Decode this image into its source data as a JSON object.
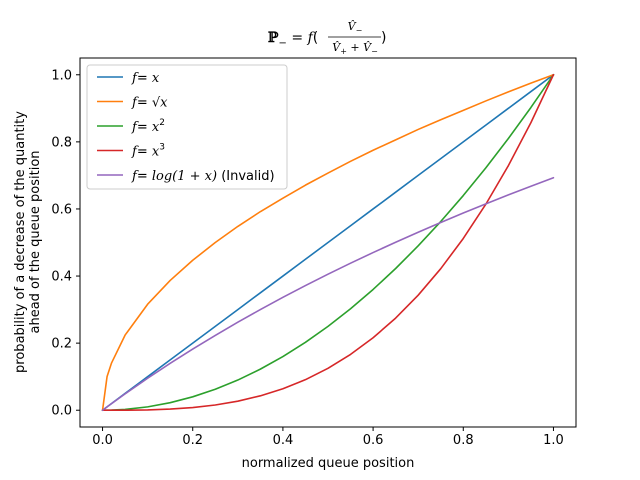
{
  "chart_data": {
    "type": "line",
    "title": "ℙ₋ = f(V̂₋ / (V̂₊ + V̂₋))",
    "xlabel": "normalized queue position",
    "ylabel_lines": [
      "probability of a decrease of the quantity",
      "ahead of the queue position"
    ],
    "xlim": [
      -0.05,
      1.05
    ],
    "ylim": [
      -0.05,
      1.05
    ],
    "xticks": [
      0.0,
      0.2,
      0.4,
      0.6,
      0.8,
      1.0
    ],
    "yticks": [
      0.0,
      0.2,
      0.4,
      0.6,
      0.8,
      1.0
    ],
    "xtick_labels": [
      "0.0",
      "0.2",
      "0.4",
      "0.6",
      "0.8",
      "1.0"
    ],
    "ytick_labels": [
      "0.0",
      "0.2",
      "0.4",
      "0.6",
      "0.8",
      "1.0"
    ],
    "grid": false,
    "legend_position": "top-left",
    "x": [
      0.0,
      0.01,
      0.02,
      0.05,
      0.1,
      0.15,
      0.2,
      0.25,
      0.3,
      0.35,
      0.4,
      0.45,
      0.5,
      0.55,
      0.6,
      0.65,
      0.7,
      0.75,
      0.8,
      0.85,
      0.9,
      0.95,
      1.0
    ],
    "series": [
      {
        "name": "f = x",
        "legend": {
          "pre": "f",
          "post": " x",
          "sup": "",
          "suffix": ""
        },
        "color": "#1f77b4",
        "values": [
          0.0,
          0.01,
          0.02,
          0.05,
          0.1,
          0.15,
          0.2,
          0.25,
          0.3,
          0.35,
          0.4,
          0.45,
          0.5,
          0.55,
          0.6,
          0.65,
          0.7,
          0.75,
          0.8,
          0.85,
          0.9,
          0.95,
          1.0
        ]
      },
      {
        "name": "f = √x",
        "legend": {
          "pre": "f",
          "post": " √x",
          "sup": "",
          "suffix": ""
        },
        "color": "#ff7f0e",
        "values": [
          0.0,
          0.1,
          0.141,
          0.224,
          0.316,
          0.387,
          0.447,
          0.5,
          0.548,
          0.592,
          0.632,
          0.671,
          0.707,
          0.742,
          0.775,
          0.806,
          0.837,
          0.866,
          0.894,
          0.922,
          0.949,
          0.975,
          1.0
        ]
      },
      {
        "name": "f = x²",
        "legend": {
          "pre": "f",
          "post": " x",
          "sup": "2",
          "suffix": ""
        },
        "color": "#2ca02c",
        "values": [
          0.0,
          0.0001,
          0.0004,
          0.0025,
          0.01,
          0.0225,
          0.04,
          0.0625,
          0.09,
          0.1225,
          0.16,
          0.2025,
          0.25,
          0.3025,
          0.36,
          0.4225,
          0.49,
          0.5625,
          0.64,
          0.7225,
          0.81,
          0.9025,
          1.0
        ]
      },
      {
        "name": "f = x³",
        "legend": {
          "pre": "f",
          "post": " x",
          "sup": "3",
          "suffix": ""
        },
        "color": "#d62728",
        "values": [
          0.0,
          1e-06,
          8e-06,
          0.000125,
          0.001,
          0.0034,
          0.008,
          0.0156,
          0.027,
          0.0429,
          0.064,
          0.0911,
          0.125,
          0.1664,
          0.216,
          0.2746,
          0.343,
          0.4219,
          0.512,
          0.6141,
          0.729,
          0.8574,
          1.0
        ]
      },
      {
        "name": "f = log(1 + x) (Invalid)",
        "legend": {
          "pre": "f",
          "post": " log(1 + x)",
          "sup": "",
          "suffix": " (Invalid)"
        },
        "color": "#9467bd",
        "values": [
          0.0,
          0.00995,
          0.0198,
          0.0488,
          0.0953,
          0.1398,
          0.1823,
          0.2231,
          0.2624,
          0.3001,
          0.3365,
          0.3716,
          0.4055,
          0.4383,
          0.47,
          0.5008,
          0.5306,
          0.5596,
          0.5878,
          0.6152,
          0.6419,
          0.6678,
          0.6931
        ]
      }
    ]
  }
}
